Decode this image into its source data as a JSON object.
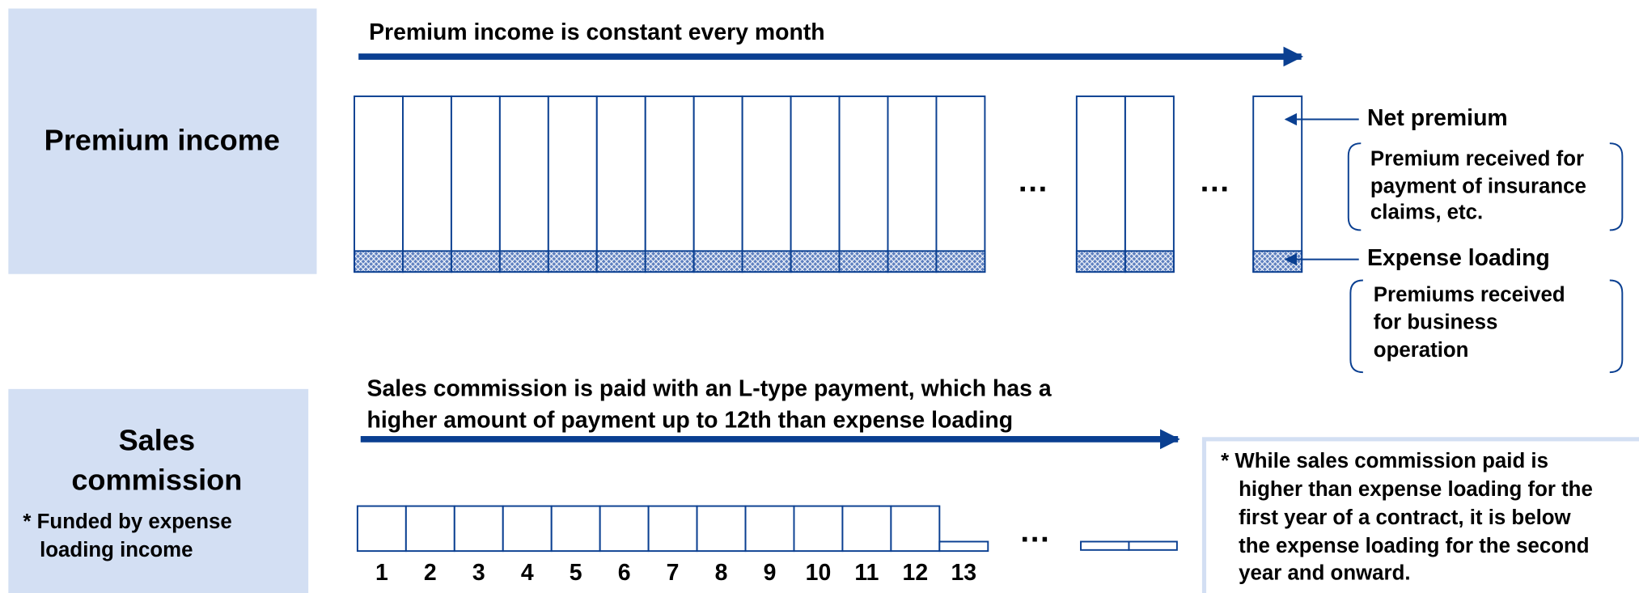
{
  "premium": {
    "label": "Premium income",
    "arrow_text": "Premium income is constant every month",
    "net_premium": "Net premium",
    "net_premium_note": [
      "Premium received for",
      "payment of insurance",
      "claims, etc."
    ],
    "expense_loading": "Expense loading",
    "expense_loading_note": [
      "Premiums received",
      "for business",
      "operation"
    ]
  },
  "commission": {
    "label": [
      "Sales",
      "commission"
    ],
    "note": [
      "* Funded by expense",
      "loading income"
    ],
    "arrow_text": [
      "Sales commission is paid with an L-type payment, which has a",
      "higher amount of payment up to 12th than expense loading"
    ],
    "months": [
      "1",
      "2",
      "3",
      "4",
      "5",
      "6",
      "7",
      "8",
      "9",
      "10",
      "11",
      "12",
      "13"
    ],
    "side_note": [
      "* While sales commission paid is",
      "higher than expense loading for the",
      "first year of a contract, it is below",
      "the expense loading for the second",
      "year and onward."
    ]
  },
  "ellipsis": "…"
}
